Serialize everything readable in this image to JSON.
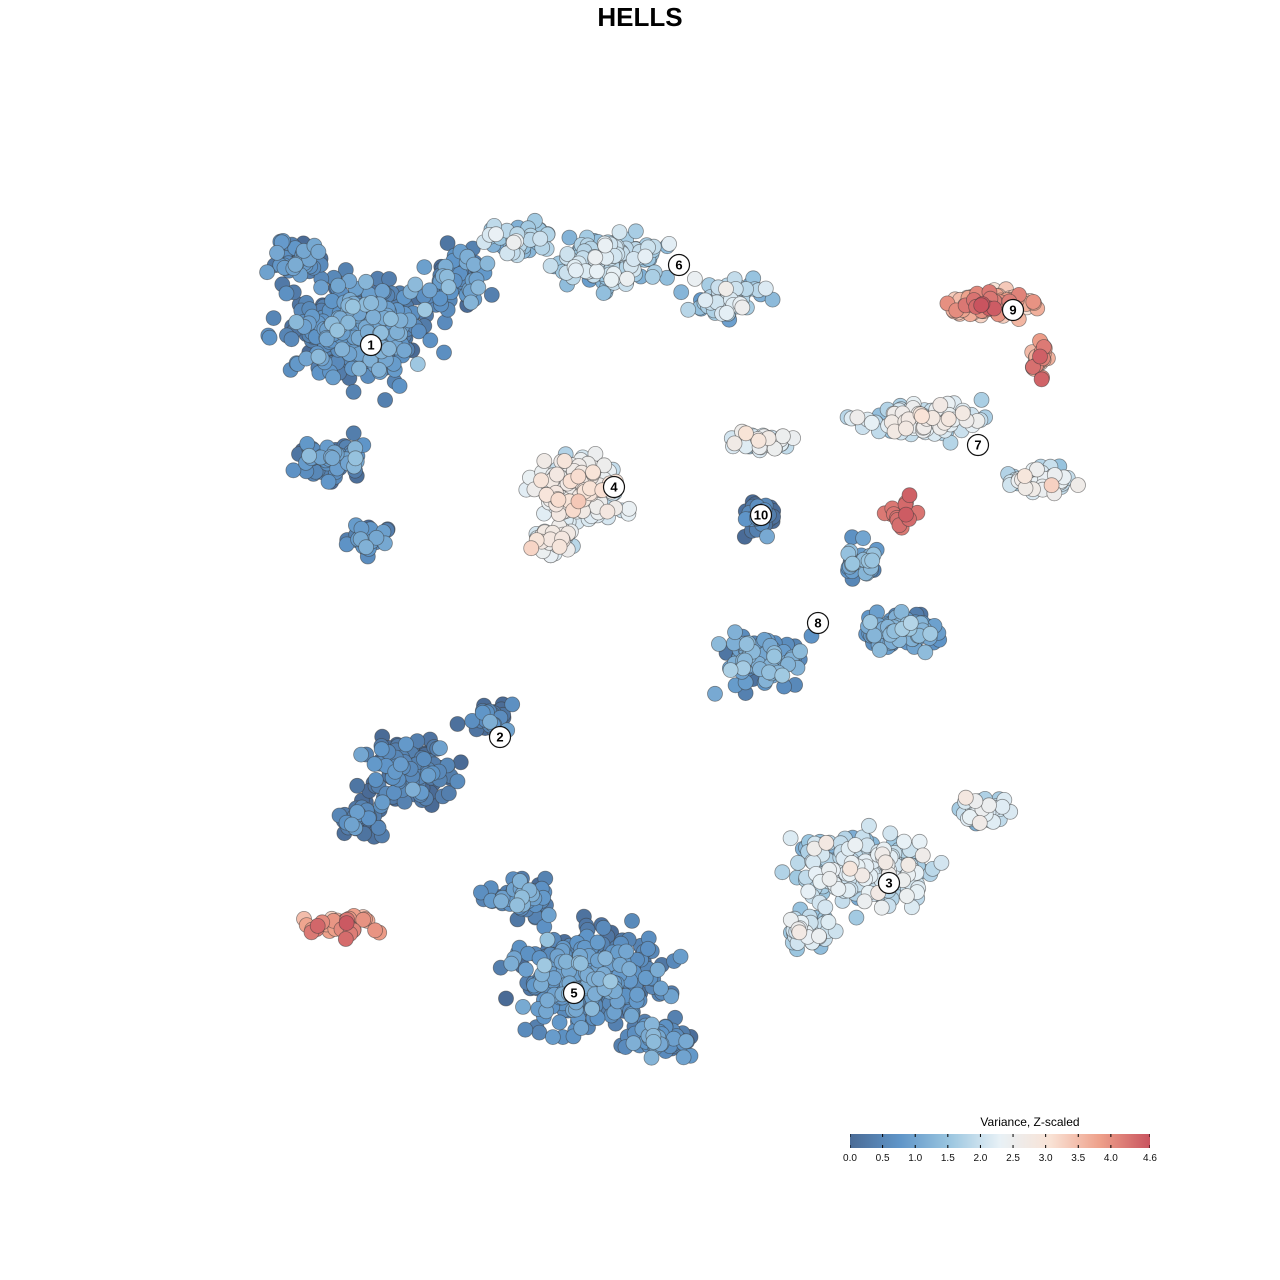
{
  "chart_data": {
    "type": "scatter",
    "title": "HELLS",
    "legend": {
      "title": "Variance, Z-scaled",
      "placement": "bottom-right",
      "ticks": [
        0.0,
        0.5,
        1.0,
        1.5,
        2.0,
        2.5,
        3.0,
        3.5,
        4.0,
        4.6
      ],
      "tick_labels": [
        "0.0",
        "0.5",
        "1.0",
        "1.5",
        "2.0",
        "2.5",
        "3.0",
        "3.5",
        "4.0",
        "4.6"
      ],
      "range": [
        0.0,
        4.6
      ],
      "colors": [
        "#4a6b96",
        "#5f95c8",
        "#9bc6e0",
        "#e8f1f6",
        "#f9e3d6",
        "#eea08a",
        "#c9545f"
      ]
    },
    "grid": false,
    "axes_visible": false,
    "cluster_labels": [
      "1",
      "2",
      "3",
      "4",
      "5",
      "6",
      "7",
      "8",
      "9",
      "10"
    ],
    "clusters": [
      {
        "label": "1",
        "mean_value": 0.6
      },
      {
        "label": "2",
        "mean_value": 0.2
      },
      {
        "label": "3",
        "mean_value": 1.9
      },
      {
        "label": "4",
        "mean_value": 2.4
      },
      {
        "label": "5",
        "mean_value": 0.6
      },
      {
        "label": "6",
        "mean_value": 1.7
      },
      {
        "label": "7",
        "mean_value": 2.2
      },
      {
        "label": "8",
        "mean_value": 0.9
      },
      {
        "label": "9",
        "mean_value": 3.7
      },
      {
        "label": "10",
        "mean_value": 0.2
      }
    ]
  }
}
